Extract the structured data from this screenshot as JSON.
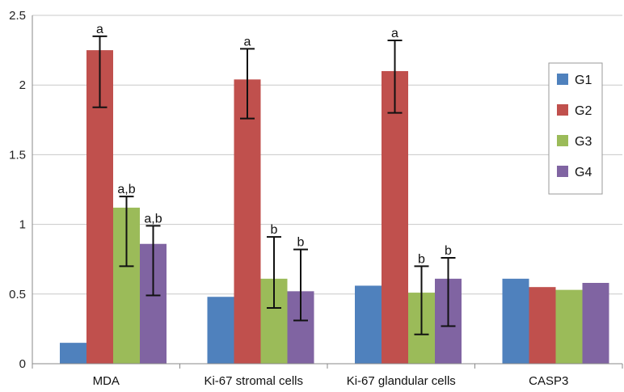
{
  "chart_data": {
    "type": "bar",
    "categories": [
      "MDA",
      "Ki-67 stromal cells",
      "Ki-67 glandular cells",
      "CASP3"
    ],
    "series": [
      {
        "name": "G1",
        "color": "#4F81BD",
        "values": [
          0.15,
          0.48,
          0.56,
          0.61
        ],
        "errors": [
          null,
          null,
          null,
          null
        ],
        "labels": [
          "",
          "",
          "",
          ""
        ]
      },
      {
        "name": "G2",
        "color": "#C0504D",
        "values": [
          2.25,
          2.04,
          2.1,
          0.55
        ],
        "errors": [
          0.41,
          0.26,
          0.26,
          null
        ],
        "labels": [
          "a",
          "a",
          "a",
          ""
        ]
      },
      {
        "name": "G3",
        "color": "#9BBB59",
        "values": [
          1.12,
          0.61,
          0.51,
          0.53
        ],
        "errors": [
          0.08,
          0.3,
          0.19,
          null
        ],
        "labels": [
          "a,b",
          "b",
          "b",
          ""
        ]
      },
      {
        "name": "G4",
        "color": "#8064A2",
        "values": [
          0.86,
          0.52,
          0.61,
          0.58
        ],
        "errors": [
          0.13,
          0.3,
          0.15,
          null
        ],
        "labels": [
          "a,b",
          "b",
          "b",
          ""
        ]
      }
    ],
    "error_bars_asymmetric": {
      "G2": [
        [
          1.84,
          2.35
        ],
        [
          1.76,
          2.26
        ],
        [
          1.8,
          2.32
        ],
        null
      ],
      "G3": [
        [
          0.7,
          1.2
        ],
        [
          0.4,
          0.91
        ],
        [
          0.21,
          0.7
        ],
        null
      ],
      "G4": [
        [
          0.49,
          0.99
        ],
        [
          0.31,
          0.82
        ],
        [
          0.27,
          0.76
        ],
        null
      ]
    },
    "ylim": [
      0,
      2.5
    ],
    "yticks": [
      "0",
      "0.5",
      "1",
      "1.5",
      "2",
      "2.5"
    ],
    "ytick_values": [
      0,
      0.5,
      1,
      1.5,
      2,
      2.5
    ],
    "title": "",
    "xlabel": "",
    "ylabel": "",
    "grid": true,
    "legend_position": "right"
  }
}
